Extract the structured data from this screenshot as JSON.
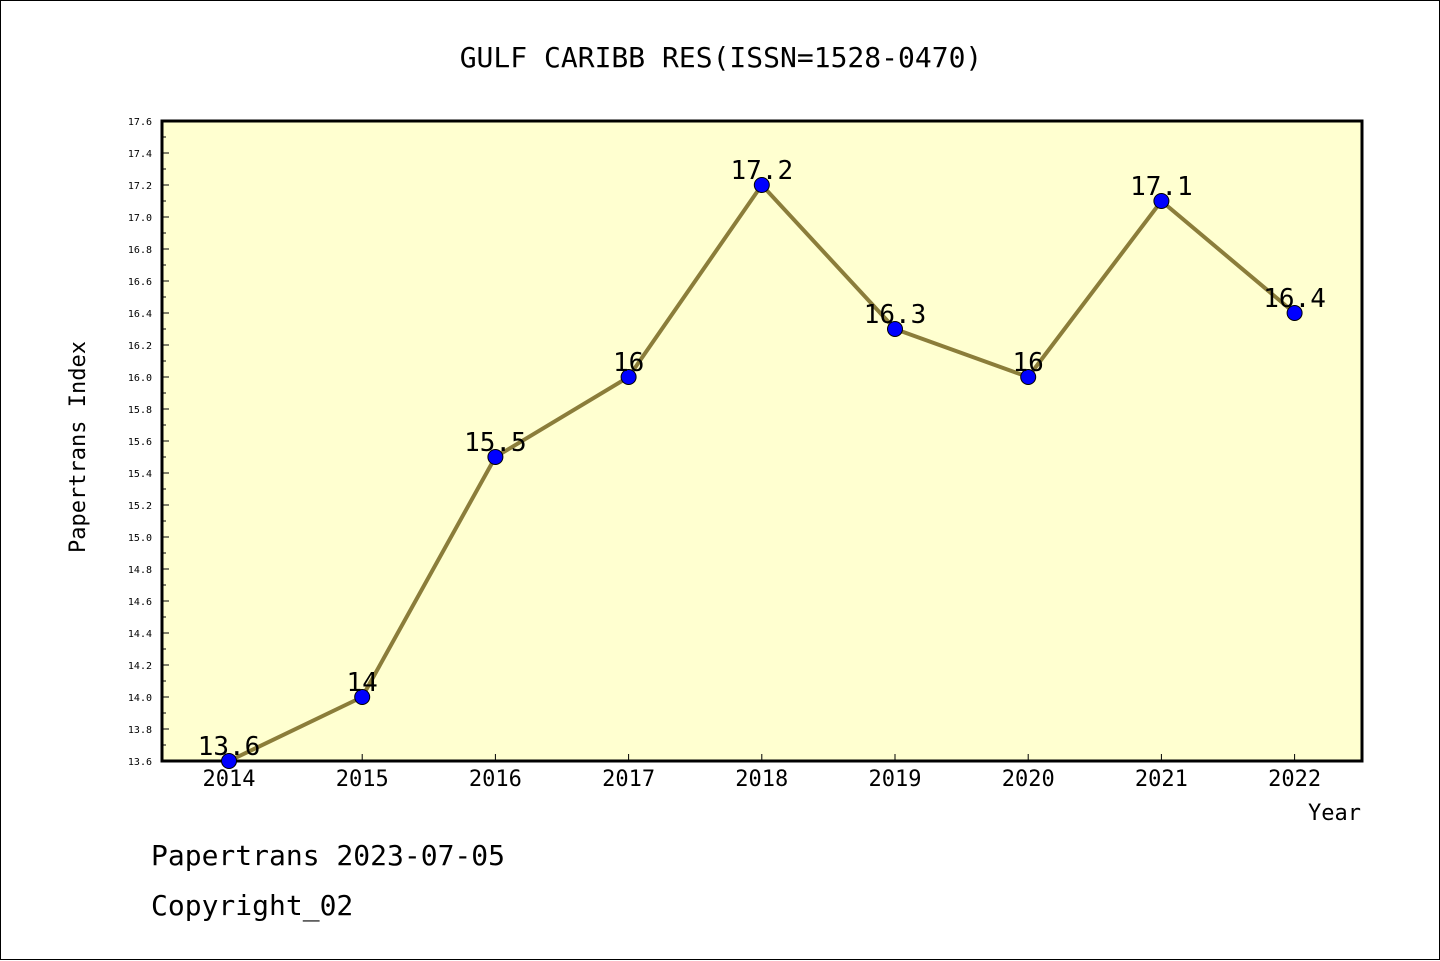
{
  "chart_data": {
    "type": "line",
    "title": "GULF CARIBB RES(ISSN=1528-0470)",
    "xlabel": "Year",
    "ylabel": "Papertrans Index",
    "categories": [
      "2014",
      "2015",
      "2016",
      "2017",
      "2018",
      "2019",
      "2020",
      "2021",
      "2022"
    ],
    "values": [
      13.6,
      14.0,
      15.5,
      16.0,
      17.2,
      16.3,
      16.0,
      17.1,
      16.4
    ],
    "data_labels": [
      "13.6",
      "14",
      "15.5",
      "16",
      "17.2",
      "16.3",
      "16",
      "17.1",
      "16.4"
    ],
    "ylim": [
      13.6,
      17.6
    ],
    "y_ticks": [
      "13.6",
      "13.8",
      "14.0",
      "14.2",
      "14.4",
      "14.6",
      "14.8",
      "15.0",
      "15.2",
      "15.4",
      "15.6",
      "15.8",
      "16.0",
      "16.2",
      "16.4",
      "16.6",
      "16.8",
      "17.0",
      "17.2",
      "17.4",
      "17.6"
    ],
    "grid": false,
    "colors": {
      "plot_background": "#ffffd0",
      "line": "#8b7d3a",
      "marker": "#0000ff"
    }
  },
  "footer": {
    "line1": "Papertrans 2023-07-05",
    "line2": "Copyright_02"
  }
}
